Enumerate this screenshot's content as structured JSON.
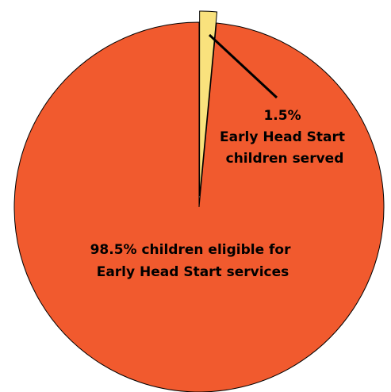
{
  "chart_data": {
    "type": "pie",
    "title": "",
    "legend": "none",
    "slices": [
      {
        "label_lines": [
          "98.5% children eligible for",
          "Early Head Start services"
        ],
        "value": 98.5,
        "color": "#F15A2E"
      },
      {
        "label_lines": [
          "1.5%",
          "Early Head Start",
          "children served"
        ],
        "value": 1.5,
        "color": "#F9E27D",
        "exploded": true
      }
    ]
  }
}
